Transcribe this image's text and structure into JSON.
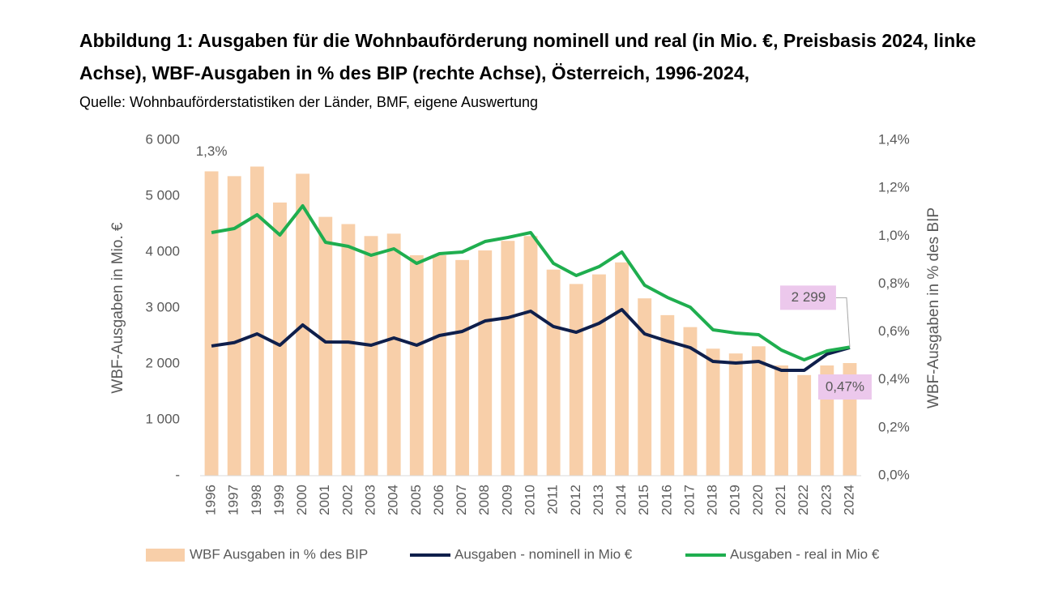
{
  "chart_data": {
    "type": "combo",
    "title": "Abbildung 1: Ausgaben für die Wohnbauförderung nominell und real (in Mio. €, Preisbasis 2024, linke Achse), WBF-Ausgaben in % des BIP (rechte Achse), Österreich, 1996-2024,",
    "subtitle": "Quelle: Wohnbauförderstatistiken der Länder, BMF, eigene Auswertung",
    "y_label": "WBF-Ausgaben in Mio. €",
    "y2_label": "WBF-Ausgaben in % des BIP",
    "categories": [
      "1996",
      "1997",
      "1998",
      "1999",
      "2000",
      "2001",
      "2002",
      "2003",
      "2004",
      "2005",
      "2006",
      "2007",
      "2008",
      "2009",
      "2010",
      "2011",
      "2012",
      "2013",
      "2014",
      "2015",
      "2016",
      "2017",
      "2018",
      "2019",
      "2020",
      "2021",
      "2022",
      "2023",
      "2024"
    ],
    "ylim": [
      0,
      6000
    ],
    "yticks": [
      {
        "value": 0,
        "label": "-"
      },
      {
        "value": 1000,
        "label": "1 000"
      },
      {
        "value": 2000,
        "label": "2 000"
      },
      {
        "value": 3000,
        "label": "3 000"
      },
      {
        "value": 4000,
        "label": "4 000"
      },
      {
        "value": 5000,
        "label": "5 000"
      },
      {
        "value": 6000,
        "label": "6 000"
      }
    ],
    "y2lim": [
      0,
      1.4
    ],
    "y2ticks": [
      {
        "value": 0,
        "label": "0,0%"
      },
      {
        "value": 0.2,
        "label": "0,2%"
      },
      {
        "value": 0.4,
        "label": "0,4%"
      },
      {
        "value": 0.6,
        "label": "0,6%"
      },
      {
        "value": 0.8,
        "label": "0,8%"
      },
      {
        "value": 1.0,
        "label": "1,0%"
      },
      {
        "value": 1.2,
        "label": "1,2%"
      },
      {
        "value": 1.4,
        "label": "1,4%"
      }
    ],
    "grid": false,
    "series": [
      {
        "name": "WBF Ausgaben in % des BIP",
        "type": "bar",
        "axis": "y2",
        "color": "#f8cfa9",
        "values": [
          1.27,
          1.25,
          1.29,
          1.14,
          1.26,
          1.08,
          1.05,
          1.0,
          1.01,
          0.92,
          0.92,
          0.9,
          0.94,
          0.98,
          1.0,
          0.86,
          0.8,
          0.84,
          0.89,
          0.74,
          0.67,
          0.62,
          0.53,
          0.51,
          0.54,
          0.46,
          0.42,
          0.46,
          0.47
        ],
        "value_labels": [
          "1,3%",
          null,
          null,
          null,
          null,
          null,
          null,
          null,
          null,
          null,
          null,
          null,
          null,
          null,
          null,
          null,
          null,
          null,
          null,
          null,
          null,
          null,
          null,
          null,
          null,
          null,
          null,
          null,
          "0,47%"
        ]
      },
      {
        "name": "Ausgaben - nominell in Mio €",
        "type": "line",
        "color": "#0f1f4b",
        "values": [
          2320,
          2380,
          2536,
          2333,
          2696,
          2391,
          2390,
          2333,
          2464,
          2333,
          2507,
          2580,
          2768,
          2826,
          2942,
          2667,
          2565,
          2725,
          2971,
          2536,
          2406,
          2290,
          2043,
          2014,
          2043,
          1884,
          1884,
          2174,
          2290
        ]
      },
      {
        "name": "Ausgaben - real in Mio €",
        "type": "line",
        "color": "#1fae4f",
        "values": [
          4348,
          4420,
          4667,
          4304,
          4826,
          4174,
          4101,
          3942,
          4058,
          3797,
          3971,
          4000,
          4188,
          4261,
          4348,
          3797,
          3580,
          3739,
          4000,
          3406,
          3188,
          3014,
          2609,
          2551,
          2522,
          2246,
          2072,
          2232,
          2299
        ],
        "value_labels": [
          null,
          null,
          null,
          null,
          null,
          null,
          null,
          null,
          null,
          null,
          null,
          null,
          null,
          null,
          null,
          null,
          null,
          null,
          null,
          null,
          null,
          null,
          null,
          null,
          null,
          null,
          null,
          null,
          "2 299"
        ]
      }
    ]
  }
}
